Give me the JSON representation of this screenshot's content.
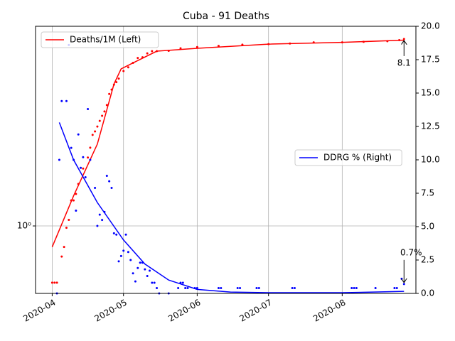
{
  "chart_data": {
    "type": "line",
    "title": "Cuba - 91 Deaths",
    "xlim": [
      "2020-03-25",
      "2020-09-01"
    ],
    "xticks": [
      {
        "value": "2020-04-01",
        "label": "2020-04"
      },
      {
        "value": "2020-05-01",
        "label": "2020-05"
      },
      {
        "value": "2020-06-01",
        "label": "2020-06"
      },
      {
        "value": "2020-07-01",
        "label": "2020-07"
      },
      {
        "value": "2020-08-01",
        "label": "2020-08"
      }
    ],
    "ylim": [
      0.47,
      9.34
    ],
    "yscale": "log",
    "yticks": [
      {
        "value": 1,
        "label": "10⁰"
      }
    ],
    "y2lim": [
      0,
      20
    ],
    "y2ticks": [
      {
        "value": 0,
        "label": "0.0"
      },
      2.5,
      {
        "value": 5,
        "label": "5.0"
      },
      7.5,
      {
        "value": 10,
        "label": "10.0"
      },
      12.5,
      {
        "value": 15,
        "label": "15.0"
      },
      17.5,
      {
        "value": 20,
        "label": "20.0"
      }
    ],
    "grid": true,
    "series": [
      {
        "kind": "scatter",
        "color": "#ff0000",
        "axis": "y",
        "x": [
          "2020-04-01",
          "2020-04-02",
          "2020-04-03",
          "2020-04-05",
          "2020-04-06",
          "2020-04-07",
          "2020-04-08",
          "2020-04-09",
          "2020-04-10",
          "2020-04-11",
          "2020-04-12",
          "2020-04-14",
          "2020-04-16",
          "2020-04-17",
          "2020-04-18",
          "2020-04-19",
          "2020-04-20",
          "2020-04-21",
          "2020-04-22",
          "2020-04-23",
          "2020-04-24",
          "2020-04-25",
          "2020-04-26",
          "2020-04-27",
          "2020-04-28",
          "2020-04-29",
          "2020-05-01",
          "2020-05-03",
          "2020-05-05",
          "2020-05-07",
          "2020-05-09",
          "2020-05-11",
          "2020-05-13",
          "2020-05-15",
          "2020-05-20",
          "2020-05-25",
          "2020-06-01",
          "2020-06-10",
          "2020-06-20",
          "2020-07-01",
          "2020-07-10",
          "2020-07-20",
          "2020-08-01",
          "2020-08-10",
          "2020-08-20",
          "2020-08-25",
          "2020-08-27"
        ],
        "values": [
          0.53,
          0.53,
          0.53,
          0.71,
          0.79,
          0.98,
          1.07,
          1.33,
          1.33,
          1.43,
          1.6,
          1.9,
          2.15,
          2.4,
          2.77,
          2.88,
          3.04,
          3.24,
          3.43,
          3.6,
          3.87,
          4.38,
          4.6,
          4.86,
          5.0,
          5.2,
          5.66,
          5.9,
          6.2,
          6.55,
          6.6,
          6.9,
          7.07,
          7.07,
          7.1,
          7.3,
          7.4,
          7.5,
          7.6,
          7.65,
          7.7,
          7.8,
          7.8,
          7.85,
          7.9,
          8.0,
          8.1
        ]
      },
      {
        "kind": "line",
        "name": "Deaths/1M (Left)",
        "color": "#ff0000",
        "axis": "y",
        "legend_loc": "upper left",
        "x": [
          "2020-04-01",
          "2020-04-10",
          "2020-04-20",
          "2020-04-27",
          "2020-04-30",
          "2020-05-05",
          "2020-05-15",
          "2020-06-01",
          "2020-07-01",
          "2020-08-01",
          "2020-08-27"
        ],
        "values": [
          0.79,
          1.4,
          2.5,
          4.9,
          5.8,
          6.2,
          7.07,
          7.3,
          7.65,
          7.8,
          8.0
        ]
      },
      {
        "kind": "scatter",
        "color": "#0000ff",
        "axis": "y2",
        "x": [
          "2020-04-03",
          "2020-04-04",
          "2020-04-05",
          "2020-04-07",
          "2020-04-08",
          "2020-04-09",
          "2020-04-10",
          "2020-04-11",
          "2020-04-12",
          "2020-04-13",
          "2020-04-14",
          "2020-04-15",
          "2020-04-16",
          "2020-04-17",
          "2020-04-19",
          "2020-04-20",
          "2020-04-21",
          "2020-04-22",
          "2020-04-23",
          "2020-04-24",
          "2020-04-25",
          "2020-04-26",
          "2020-04-27",
          "2020-04-28",
          "2020-04-29",
          "2020-04-30",
          "2020-05-01",
          "2020-05-02",
          "2020-05-03",
          "2020-05-04",
          "2020-05-05",
          "2020-05-06",
          "2020-05-07",
          "2020-05-08",
          "2020-05-09",
          "2020-05-10",
          "2020-05-11",
          "2020-05-12",
          "2020-05-13",
          "2020-05-14",
          "2020-05-15",
          "2020-05-16",
          "2020-05-20",
          "2020-05-24",
          "2020-05-25",
          "2020-05-26",
          "2020-05-27",
          "2020-05-28",
          "2020-05-31",
          "2020-06-01",
          "2020-06-10",
          "2020-06-11",
          "2020-06-18",
          "2020-06-19",
          "2020-06-26",
          "2020-06-27",
          "2020-07-11",
          "2020-07-12",
          "2020-08-05",
          "2020-08-06",
          "2020-08-07",
          "2020-08-15",
          "2020-08-23",
          "2020-08-24",
          "2020-08-26",
          "2020-08-27"
        ],
        "values": [
          0,
          10,
          14.4,
          14.4,
          18.6,
          10.9,
          10,
          6.2,
          11.9,
          9.4,
          10.2,
          8.7,
          13.8,
          10,
          7.9,
          5.05,
          5.9,
          5.5,
          6.1,
          8.8,
          8.4,
          7.9,
          4.5,
          4.4,
          2.4,
          2.8,
          3.2,
          4.4,
          3.1,
          2.5,
          1.5,
          0.9,
          1.9,
          2.3,
          2.3,
          1.8,
          1.3,
          1.7,
          0.8,
          0.8,
          0.4,
          0,
          0,
          0.4,
          0.8,
          0.8,
          0.4,
          0.4,
          0.4,
          0.4,
          0.4,
          0.4,
          0.4,
          0.4,
          0.4,
          0.4,
          0.4,
          0.4,
          0.4,
          0.4,
          0.4,
          0.4,
          0.4,
          0.4,
          1.1,
          0.7
        ]
      },
      {
        "kind": "line",
        "name": "DDRG % (Right)",
        "color": "#0000ff",
        "axis": "y2",
        "legend_loc": "center right",
        "x": [
          "2020-04-04",
          "2020-04-10",
          "2020-04-20",
          "2020-05-01",
          "2020-05-10",
          "2020-05-20",
          "2020-06-01",
          "2020-06-15",
          "2020-07-01",
          "2020-08-01",
          "2020-08-27"
        ],
        "values": [
          12.8,
          10,
          6.8,
          4.0,
          2.2,
          1.0,
          0.3,
          0.1,
          0.05,
          0.05,
          0.15
        ]
      }
    ],
    "annotations": [
      {
        "text": "8.1",
        "x": "2020-08-27",
        "value": 8.1,
        "axis": "y"
      },
      {
        "text": "0.7%",
        "x": "2020-08-27",
        "value": 0.7,
        "axis": "y2"
      }
    ]
  }
}
